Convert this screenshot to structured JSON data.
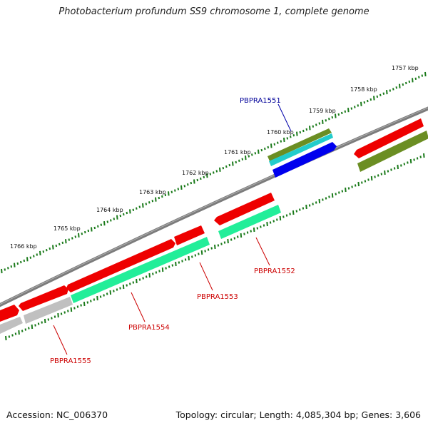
{
  "title": "Photobacterium profundum SS9 chromosome 1, complete genome",
  "footer": {
    "accession": "Accession: NC_006370",
    "topology": "Topology: circular; Length: 4,085,304 bp; Genes: 3,606"
  },
  "scale": {
    "ticks": [
      "1757 kbp",
      "1758 kbp",
      "1759 kbp",
      "1760 kbp",
      "1761 kbp",
      "1762 kbp",
      "1763 kbp",
      "1764 kbp",
      "1765 kbp",
      "1766 kbp"
    ]
  },
  "genes": [
    {
      "label": "PBPRA1551",
      "color": "#000099"
    },
    {
      "label": "PBPRA1552",
      "color": "#cc0000"
    },
    {
      "label": "PBPRA1553",
      "color": "#cc0000"
    },
    {
      "label": "PBPRA1554",
      "color": "#cc0000"
    },
    {
      "label": "PBPRA1555",
      "color": "#cc0000"
    }
  ],
  "colors": {
    "backbone": "#808080",
    "tick": "#1a7a1a",
    "cds_red": "#ee0000",
    "gene_olive": "#6b8e23",
    "gene_cyan": "#22cccc",
    "gene_blue": "#0000ee",
    "gene_green": "#22ee99",
    "gene_grey": "#c0c0c0"
  }
}
